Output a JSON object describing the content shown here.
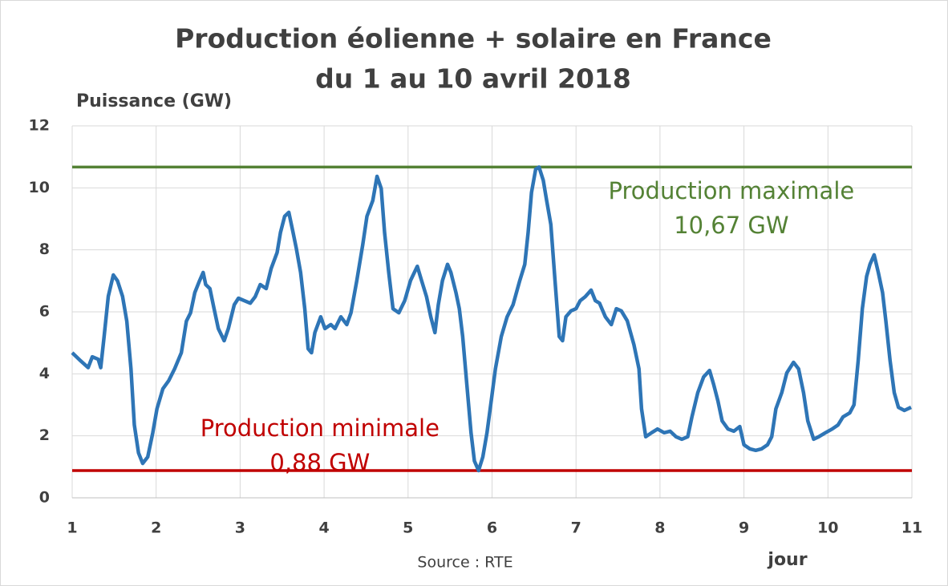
{
  "chart_data": {
    "type": "line",
    "title": [
      "Production éolienne + solaire en France",
      "du 1 au 10 avril 2018"
    ],
    "y_label": "Puissance (GW)",
    "x_label": "jour",
    "source": "Source : RTE",
    "xlim": [
      1,
      11
    ],
    "xticks": [
      1,
      2,
      3,
      4,
      5,
      6,
      7,
      8,
      9,
      10,
      11
    ],
    "ylim": [
      0,
      12
    ],
    "yticks": [
      0,
      2,
      4,
      6,
      8,
      10,
      12
    ],
    "grid": true,
    "color": "#2e75b6",
    "x": [
      1.0,
      1.1,
      1.19,
      1.24,
      1.31,
      1.34,
      1.38,
      1.43,
      1.49,
      1.54,
      1.6,
      1.65,
      1.7,
      1.74,
      1.79,
      1.84,
      1.9,
      1.96,
      2.01,
      2.08,
      2.15,
      2.22,
      2.3,
      2.36,
      2.41,
      2.46,
      2.51,
      2.56,
      2.59,
      2.64,
      2.69,
      2.74,
      2.81,
      2.86,
      2.93,
      2.98,
      3.05,
      3.12,
      3.18,
      3.24,
      3.31,
      3.37,
      3.44,
      3.48,
      3.53,
      3.58,
      3.63,
      3.67,
      3.72,
      3.77,
      3.81,
      3.85,
      3.89,
      3.96,
      4.01,
      4.08,
      4.13,
      4.2,
      4.27,
      4.32,
      4.39,
      4.46,
      4.51,
      4.58,
      4.63,
      4.68,
      4.72,
      4.77,
      4.82,
      4.89,
      4.96,
      5.03,
      5.11,
      5.16,
      5.22,
      5.27,
      5.32,
      5.36,
      5.41,
      5.47,
      5.51,
      5.57,
      5.61,
      5.65,
      5.7,
      5.75,
      5.79,
      5.84,
      5.89,
      5.94,
      5.99,
      6.04,
      6.11,
      6.18,
      6.25,
      6.33,
      6.39,
      6.43,
      6.47,
      6.52,
      6.56,
      6.61,
      6.65,
      6.7,
      6.75,
      6.8,
      6.84,
      6.88,
      6.94,
      7.0,
      7.05,
      7.11,
      7.18,
      7.23,
      7.28,
      7.35,
      7.42,
      7.48,
      7.54,
      7.61,
      7.69,
      7.75,
      7.78,
      7.83,
      7.9,
      7.97,
      8.05,
      8.12,
      8.19,
      8.26,
      8.33,
      8.38,
      8.45,
      8.52,
      8.59,
      8.64,
      8.69,
      8.74,
      8.81,
      8.88,
      8.95,
      9.0,
      9.07,
      9.14,
      9.21,
      9.28,
      9.33,
      9.38,
      9.45,
      9.51,
      9.59,
      9.65,
      9.71,
      9.76,
      9.83,
      9.89,
      9.97,
      10.05,
      10.12,
      10.18,
      10.26,
      10.31,
      10.36,
      10.41,
      10.46,
      10.5,
      10.55,
      10.6,
      10.65,
      10.69,
      10.74,
      10.79,
      10.84,
      10.91,
      10.99
    ],
    "values": [
      4.68,
      4.42,
      4.2,
      4.55,
      4.47,
      4.2,
      5.2,
      6.5,
      7.19,
      7.0,
      6.5,
      5.7,
      4.16,
      2.35,
      1.45,
      1.11,
      1.32,
      2.1,
      2.87,
      3.52,
      3.78,
      4.16,
      4.68,
      5.7,
      5.97,
      6.62,
      6.96,
      7.27,
      6.88,
      6.75,
      6.1,
      5.46,
      5.07,
      5.46,
      6.23,
      6.44,
      6.36,
      6.28,
      6.49,
      6.88,
      6.75,
      7.4,
      7.91,
      8.56,
      9.08,
      9.21,
      8.56,
      8.04,
      7.27,
      6.1,
      4.81,
      4.68,
      5.33,
      5.84,
      5.46,
      5.59,
      5.46,
      5.84,
      5.59,
      5.97,
      7.01,
      8.17,
      9.08,
      9.59,
      10.37,
      9.98,
      8.56,
      7.27,
      6.1,
      5.97,
      6.36,
      7.01,
      7.47,
      7.01,
      6.49,
      5.84,
      5.33,
      6.23,
      7.01,
      7.53,
      7.27,
      6.62,
      6.1,
      5.2,
      3.65,
      2.1,
      1.19,
      0.88,
      1.32,
      2.1,
      3.13,
      4.16,
      5.2,
      5.84,
      6.23,
      7.01,
      7.53,
      8.56,
      9.85,
      10.6,
      10.67,
      10.24,
      9.59,
      8.82,
      7.01,
      5.2,
      5.07,
      5.84,
      6.03,
      6.1,
      6.36,
      6.49,
      6.7,
      6.36,
      6.28,
      5.84,
      5.59,
      6.1,
      6.03,
      5.71,
      4.94,
      4.16,
      2.87,
      1.97,
      2.1,
      2.22,
      2.1,
      2.15,
      1.97,
      1.89,
      1.97,
      2.61,
      3.39,
      3.9,
      4.11,
      3.65,
      3.13,
      2.48,
      2.22,
      2.15,
      2.3,
      1.71,
      1.58,
      1.53,
      1.58,
      1.71,
      1.97,
      2.87,
      3.39,
      4.03,
      4.37,
      4.16,
      3.39,
      2.48,
      1.89,
      1.97,
      2.1,
      2.22,
      2.35,
      2.61,
      2.74,
      3.0,
      4.42,
      6.1,
      7.14,
      7.53,
      7.84,
      7.27,
      6.62,
      5.71,
      4.42,
      3.39,
      2.92,
      2.82,
      2.92
    ],
    "reference_lines": [
      {
        "value": 10.67,
        "color": "#548235",
        "label": [
          "Production maximale",
          "10,67 GW"
        ],
        "label_x": 8.85,
        "label_value": 9.85
      },
      {
        "value": 0.88,
        "color": "#c00000",
        "label": [
          "Production minimale",
          "0,88 GW"
        ],
        "label_x": 3.95,
        "label_value": 2.2
      }
    ]
  }
}
